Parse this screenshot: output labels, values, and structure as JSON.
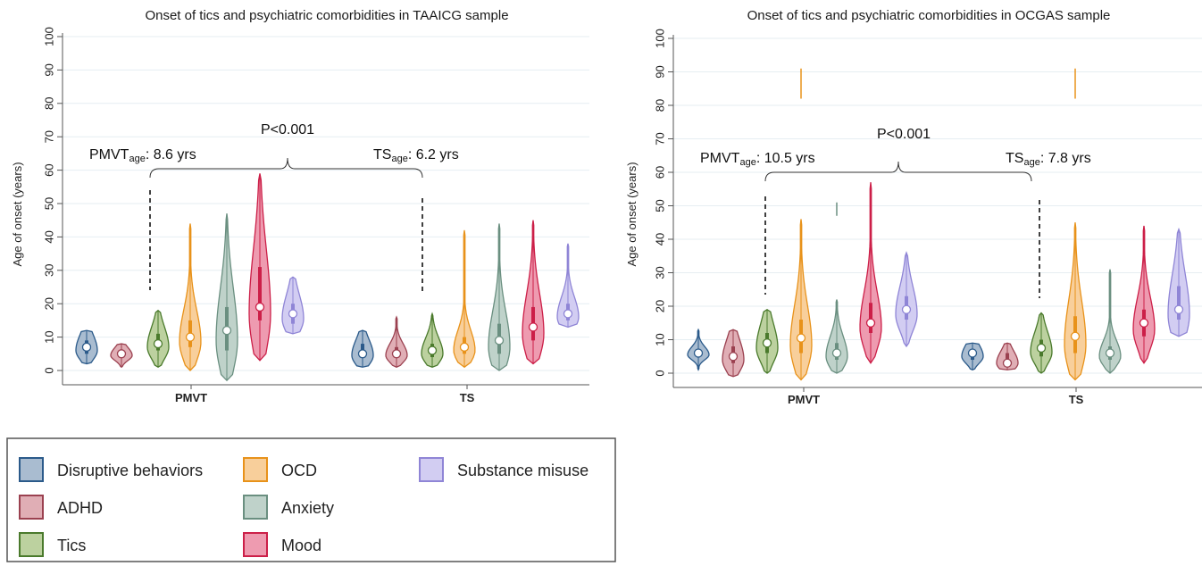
{
  "chart_data": [
    {
      "type": "violin",
      "title": "Onset of tics and psychiatric comorbidities in TAAICG sample",
      "ylabel": "Age of onset (years)",
      "ylim": [
        0,
        100
      ],
      "yticks": [
        "0",
        "10",
        "20",
        "30",
        "40",
        "50",
        "60",
        "70",
        "80",
        "90",
        "100"
      ],
      "grid": true,
      "groups": [
        "PMVT",
        "TS"
      ],
      "annotations": {
        "p_value": "P<0.001",
        "left": {
          "main": "PMVT",
          "sub": "age",
          "rest": ": 8.6 yrs"
        },
        "right": {
          "main": "TS",
          "sub": "age",
          "rest": ": 6.2 yrs"
        }
      },
      "series": [
        {
          "name": "Disruptive behaviors",
          "color": "#2b5a8a",
          "fill": "#a9bcd0",
          "PMVT": {
            "median": 7,
            "q1": 5,
            "q3": 9,
            "min": 2,
            "max": 12
          },
          "TS": {
            "median": 5,
            "q1": 4,
            "q3": 8,
            "min": 1,
            "max": 12
          }
        },
        {
          "name": "ADHD",
          "color": "#9b4150",
          "fill": "#e0aeb5",
          "PMVT": {
            "median": 5,
            "q1": 4,
            "q3": 6,
            "min": 1,
            "max": 8
          },
          "TS": {
            "median": 5,
            "q1": 4,
            "q3": 7,
            "min": 1,
            "max": 16
          }
        },
        {
          "name": "Tics",
          "color": "#4a7a2c",
          "fill": "#bcd19f",
          "PMVT": {
            "median": 8,
            "q1": 6,
            "q3": 11,
            "min": 1,
            "max": 18
          },
          "TS": {
            "median": 6,
            "q1": 4,
            "q3": 8,
            "min": 1,
            "max": 17
          }
        },
        {
          "name": "OCD",
          "color": "#e8921a",
          "fill": "#f8cf9b",
          "PMVT": {
            "median": 10,
            "q1": 7,
            "q3": 15,
            "min": 0,
            "max": 44
          },
          "TS": {
            "median": 7,
            "q1": 5,
            "q3": 10,
            "min": 1,
            "max": 42
          }
        },
        {
          "name": "Anxiety",
          "color": "#6a8f80",
          "fill": "#bfd2ca",
          "PMVT": {
            "median": 12,
            "q1": 6,
            "q3": 19,
            "min": -3,
            "max": 47
          },
          "TS": {
            "median": 9,
            "q1": 5,
            "q3": 14,
            "min": 0,
            "max": 44
          }
        },
        {
          "name": "Mood",
          "color": "#cc1f48",
          "fill": "#ee9bb0",
          "PMVT": {
            "median": 19,
            "q1": 15,
            "q3": 31,
            "min": 3,
            "max": 59
          },
          "TS": {
            "median": 13,
            "q1": 9,
            "q3": 19,
            "min": 2,
            "max": 45
          }
        },
        {
          "name": "Substance misuse",
          "color": "#8f85d6",
          "fill": "#d2cdf2",
          "PMVT": {
            "median": 17,
            "q1": 14,
            "q3": 20,
            "min": 11,
            "max": 28
          },
          "TS": {
            "median": 17,
            "q1": 15,
            "q3": 20,
            "min": 13,
            "max": 38
          }
        }
      ]
    },
    {
      "type": "violin",
      "title": "Onset of tics and psychiatric comorbidities in OCGAS sample",
      "ylabel": "Age of onset (years)",
      "ylim": [
        0,
        100
      ],
      "yticks": [
        "0",
        "10",
        "20",
        "30",
        "40",
        "50",
        "60",
        "70",
        "80",
        "90",
        "100"
      ],
      "grid": true,
      "groups": [
        "PMVT",
        "TS"
      ],
      "annotations": {
        "p_value": "P<0.001",
        "left": {
          "main": "PMVT",
          "sub": "age",
          "rest": ": 10.5 yrs"
        },
        "right": {
          "main": "TS",
          "sub": "age",
          "rest": ": 7.8 yrs"
        }
      },
      "series": [
        {
          "name": "Disruptive behaviors",
          "color": "#2b5a8a",
          "fill": "#a9bcd0",
          "PMVT": {
            "median": 6,
            "q1": 5,
            "q3": 7,
            "min": 1,
            "max": 13
          },
          "TS": {
            "median": 6,
            "q1": 4,
            "q3": 7,
            "min": 1,
            "max": 9
          }
        },
        {
          "name": "ADHD",
          "color": "#9b4150",
          "fill": "#e0aeb5",
          "PMVT": {
            "median": 5,
            "q1": 3,
            "q3": 8,
            "min": -1,
            "max": 13
          },
          "TS": {
            "median": 3,
            "q1": 3,
            "q3": 6,
            "min": 1,
            "max": 9
          }
        },
        {
          "name": "Tics",
          "color": "#4a7a2c",
          "fill": "#bcd19f",
          "PMVT": {
            "median": 9,
            "q1": 6,
            "q3": 12,
            "min": 0,
            "max": 19
          },
          "TS": {
            "median": 7.5,
            "q1": 5,
            "q3": 10,
            "min": 0,
            "max": 18
          }
        },
        {
          "name": "OCD",
          "color": "#e8921a",
          "fill": "#f8cf9b",
          "PMVT": {
            "median": 10.5,
            "q1": 6,
            "q3": 16,
            "min": -2,
            "max": 46,
            "outlier": [
              82,
              91
            ]
          },
          "TS": {
            "median": 11,
            "q1": 6,
            "q3": 17,
            "min": -2,
            "max": 45,
            "outlier": [
              82,
              91
            ]
          }
        },
        {
          "name": "Anxiety",
          "color": "#6a8f80",
          "fill": "#bfd2ca",
          "PMVT": {
            "median": 6,
            "q1": 4,
            "q3": 9,
            "min": 0,
            "max": 22,
            "outlier": [
              47,
              51
            ]
          },
          "TS": {
            "median": 6,
            "q1": 4,
            "q3": 8,
            "min": 0,
            "max": 31
          }
        },
        {
          "name": "Mood",
          "color": "#cc1f48",
          "fill": "#ee9bb0",
          "PMVT": {
            "median": 15,
            "q1": 12,
            "q3": 21,
            "min": 3,
            "max": 57
          },
          "TS": {
            "median": 15,
            "q1": 11,
            "q3": 19,
            "min": 3,
            "max": 44
          }
        },
        {
          "name": "Substance misuse",
          "color": "#8f85d6",
          "fill": "#d2cdf2",
          "PMVT": {
            "median": 19,
            "q1": 16,
            "q3": 23,
            "min": 8,
            "max": 36
          },
          "TS": {
            "median": 19,
            "q1": 16,
            "q3": 26,
            "min": 11,
            "max": 43
          }
        }
      ]
    }
  ],
  "legend": {
    "items": [
      {
        "label": "Disruptive behaviors",
        "border": "#2b5a8a",
        "fill": "#a9bcd0"
      },
      {
        "label": "ADHD",
        "border": "#9b4150",
        "fill": "#e0aeb5"
      },
      {
        "label": "Tics",
        "border": "#4a7a2c",
        "fill": "#bcd19f"
      },
      {
        "label": "OCD",
        "border": "#e8921a",
        "fill": "#f8cf9b"
      },
      {
        "label": "Anxiety",
        "border": "#6a8f80",
        "fill": "#bfd2ca"
      },
      {
        "label": "Mood",
        "border": "#cc1f48",
        "fill": "#ee9bb0"
      },
      {
        "label": "Substance misuse",
        "border": "#8f85d6",
        "fill": "#d2cdf2"
      }
    ]
  }
}
